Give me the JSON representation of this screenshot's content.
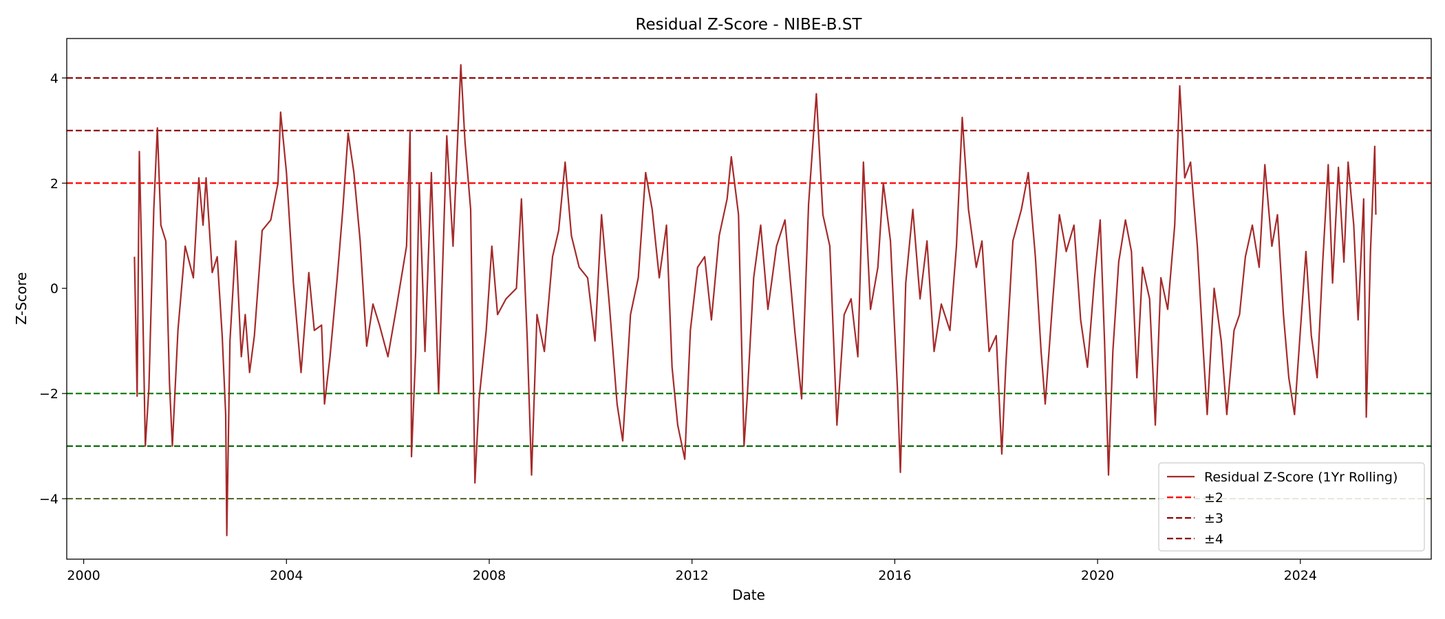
{
  "chart_data": {
    "type": "line",
    "title": "Residual Z-Score - NIBE-B.ST",
    "xlabel": "Date",
    "ylabel": "Z-Score",
    "xlim": [
      "1999-09-01",
      "2026-08-01"
    ],
    "ylim": [
      -5.15,
      4.75
    ],
    "x_ticks": [
      "2000",
      "2004",
      "2008",
      "2012",
      "2016",
      "2020",
      "2024"
    ],
    "y_ticks": [
      4,
      2,
      0,
      -2,
      -4
    ],
    "y_tick_labels": [
      "4",
      "2",
      "0",
      "−2",
      "−4"
    ],
    "grid": false,
    "legend": {
      "placement": "lower-right",
      "entries": [
        "Residual Z-Score (1Yr Rolling)",
        "±2",
        "±3",
        "±4"
      ]
    },
    "thresholds": [
      {
        "name": "±2",
        "upper": 2,
        "lower": -2,
        "upper_color": "#ff0000",
        "lower_color": "#008000"
      },
      {
        "name": "±3",
        "upper": 3,
        "lower": -3,
        "upper_color": "#8b0000",
        "lower_color": "#006400"
      },
      {
        "name": "±4",
        "upper": 4,
        "lower": -4,
        "upper_color": "#8b0000",
        "lower_color": "#556b2f"
      }
    ],
    "series": [
      {
        "name": "Residual Z-Score (1Yr Rolling)",
        "color": "#a52a2a",
        "points": [
          [
            "2001-01-01",
            0.6
          ],
          [
            "2001-01-20",
            -2.05
          ],
          [
            "2001-02-05",
            2.6
          ],
          [
            "2001-02-25",
            0.3
          ],
          [
            "2001-03-20",
            -3.0
          ],
          [
            "2001-04-15",
            -1.9
          ],
          [
            "2001-05-20",
            1.5
          ],
          [
            "2001-06-15",
            3.05
          ],
          [
            "2001-07-10",
            1.2
          ],
          [
            "2001-08-15",
            0.9
          ],
          [
            "2001-09-10",
            -1.8
          ],
          [
            "2001-10-01",
            -3.0
          ],
          [
            "2001-11-10",
            -0.8
          ],
          [
            "2002-01-01",
            0.8
          ],
          [
            "2002-03-01",
            0.2
          ],
          [
            "2002-04-10",
            2.1
          ],
          [
            "2002-05-10",
            1.2
          ],
          [
            "2002-06-01",
            2.1
          ],
          [
            "2002-07-15",
            0.3
          ],
          [
            "2002-08-20",
            0.6
          ],
          [
            "2002-09-25",
            -0.9
          ],
          [
            "2002-10-20",
            -2.4
          ],
          [
            "2002-10-28",
            -4.7
          ],
          [
            "2002-11-20",
            -1.0
          ],
          [
            "2003-01-01",
            0.9
          ],
          [
            "2003-02-10",
            -1.3
          ],
          [
            "2003-03-10",
            -0.5
          ],
          [
            "2003-04-10",
            -1.6
          ],
          [
            "2003-05-15",
            -0.9
          ],
          [
            "2003-07-10",
            1.1
          ],
          [
            "2003-09-10",
            1.3
          ],
          [
            "2003-11-01",
            2.0
          ],
          [
            "2003-11-20",
            3.35
          ],
          [
            "2004-01-01",
            2.2
          ],
          [
            "2004-02-20",
            0.1
          ],
          [
            "2004-04-15",
            -1.6
          ],
          [
            "2004-06-10",
            0.3
          ],
          [
            "2004-07-20",
            -0.8
          ],
          [
            "2004-09-10",
            -0.7
          ],
          [
            "2004-10-01",
            -2.2
          ],
          [
            "2004-11-10",
            -1.3
          ],
          [
            "2005-01-01",
            0.2
          ],
          [
            "2005-02-10",
            1.5
          ],
          [
            "2005-03-20",
            2.95
          ],
          [
            "2005-05-01",
            2.2
          ],
          [
            "2005-06-15",
            0.9
          ],
          [
            "2005-08-01",
            -1.1
          ],
          [
            "2005-09-15",
            -0.3
          ],
          [
            "2005-11-01",
            -0.7
          ],
          [
            "2006-01-01",
            -1.3
          ],
          [
            "2006-03-01",
            -0.4
          ],
          [
            "2006-05-15",
            0.8
          ],
          [
            "2006-06-10",
            3.0
          ],
          [
            "2006-06-20",
            -3.2
          ],
          [
            "2006-07-20",
            -1.2
          ],
          [
            "2006-08-15",
            2.0
          ],
          [
            "2006-09-25",
            -1.2
          ],
          [
            "2006-11-10",
            2.2
          ],
          [
            "2007-01-01",
            -2.0
          ],
          [
            "2007-03-01",
            2.9
          ],
          [
            "2007-04-15",
            0.8
          ],
          [
            "2007-06-10",
            4.25
          ],
          [
            "2007-07-10",
            2.8
          ],
          [
            "2007-08-20",
            1.5
          ],
          [
            "2007-09-20",
            -3.7
          ],
          [
            "2007-10-20",
            -2.1
          ],
          [
            "2007-12-10",
            -0.8
          ],
          [
            "2008-01-20",
            0.8
          ],
          [
            "2008-03-01",
            -0.5
          ],
          [
            "2008-05-01",
            -0.2
          ],
          [
            "2008-07-15",
            0.0
          ],
          [
            "2008-08-20",
            1.7
          ],
          [
            "2008-10-01",
            -1.0
          ],
          [
            "2008-11-01",
            -3.55
          ],
          [
            "2008-12-10",
            -0.5
          ],
          [
            "2009-02-01",
            -1.2
          ],
          [
            "2009-04-01",
            0.6
          ],
          [
            "2009-05-15",
            1.1
          ],
          [
            "2009-07-01",
            2.4
          ],
          [
            "2009-08-15",
            1.0
          ],
          [
            "2009-10-10",
            0.4
          ],
          [
            "2009-12-10",
            0.2
          ],
          [
            "2010-02-01",
            -1.0
          ],
          [
            "2010-03-20",
            1.4
          ],
          [
            "2010-05-15",
            -0.3
          ],
          [
            "2010-07-10",
            -2.2
          ],
          [
            "2010-08-20",
            -2.9
          ],
          [
            "2010-10-15",
            -0.5
          ],
          [
            "2010-12-10",
            0.2
          ],
          [
            "2011-02-01",
            2.2
          ],
          [
            "2011-03-20",
            1.5
          ],
          [
            "2011-05-10",
            0.2
          ],
          [
            "2011-07-01",
            1.2
          ],
          [
            "2011-08-10",
            -1.5
          ],
          [
            "2011-09-20",
            -2.6
          ],
          [
            "2011-11-10",
            -3.25
          ],
          [
            "2011-12-20",
            -0.8
          ],
          [
            "2012-02-10",
            0.4
          ],
          [
            "2012-04-01",
            0.6
          ],
          [
            "2012-05-20",
            -0.6
          ],
          [
            "2012-07-15",
            1.0
          ],
          [
            "2012-09-10",
            1.7
          ],
          [
            "2012-10-10",
            2.5
          ],
          [
            "2012-12-01",
            1.4
          ],
          [
            "2013-01-10",
            -3.0
          ],
          [
            "2013-02-01",
            -2.1
          ],
          [
            "2013-03-20",
            0.2
          ],
          [
            "2013-05-10",
            1.2
          ],
          [
            "2013-07-01",
            -0.4
          ],
          [
            "2013-09-01",
            0.8
          ],
          [
            "2013-11-01",
            1.3
          ],
          [
            "2014-01-10",
            -0.8
          ],
          [
            "2014-03-01",
            -2.1
          ],
          [
            "2014-04-20",
            1.6
          ],
          [
            "2014-06-15",
            3.7
          ],
          [
            "2014-08-01",
            1.4
          ],
          [
            "2014-09-20",
            0.8
          ],
          [
            "2014-11-10",
            -2.6
          ],
          [
            "2015-01-01",
            -0.5
          ],
          [
            "2015-02-20",
            -0.2
          ],
          [
            "2015-04-10",
            -1.3
          ],
          [
            "2015-05-20",
            2.4
          ],
          [
            "2015-07-10",
            -0.4
          ],
          [
            "2015-09-01",
            0.4
          ],
          [
            "2015-10-10",
            2.0
          ],
          [
            "2015-12-01",
            0.9
          ],
          [
            "2016-01-20",
            -1.9
          ],
          [
            "2016-02-10",
            -3.5
          ],
          [
            "2016-03-20",
            0.1
          ],
          [
            "2016-05-10",
            1.5
          ],
          [
            "2016-07-01",
            -0.2
          ],
          [
            "2016-08-20",
            0.9
          ],
          [
            "2016-10-10",
            -1.2
          ],
          [
            "2016-12-01",
            -0.3
          ],
          [
            "2017-02-01",
            -0.8
          ],
          [
            "2017-03-20",
            0.8
          ],
          [
            "2017-05-01",
            3.25
          ],
          [
            "2017-06-15",
            1.5
          ],
          [
            "2017-08-10",
            0.4
          ],
          [
            "2017-09-20",
            0.9
          ],
          [
            "2017-11-10",
            -1.2
          ],
          [
            "2018-01-01",
            -0.9
          ],
          [
            "2018-02-10",
            -3.15
          ],
          [
            "2018-03-10",
            -1.5
          ],
          [
            "2018-05-01",
            0.9
          ],
          [
            "2018-07-01",
            1.5
          ],
          [
            "2018-08-20",
            2.2
          ],
          [
            "2018-10-10",
            0.6
          ],
          [
            "2018-11-20",
            -1.2
          ],
          [
            "2018-12-20",
            -2.2
          ],
          [
            "2019-02-10",
            -0.3
          ],
          [
            "2019-04-01",
            1.4
          ],
          [
            "2019-05-20",
            0.7
          ],
          [
            "2019-07-15",
            1.2
          ],
          [
            "2019-09-01",
            -0.6
          ],
          [
            "2019-10-20",
            -1.5
          ],
          [
            "2019-12-10",
            0.2
          ],
          [
            "2020-01-20",
            1.3
          ],
          [
            "2020-02-20",
            -1.0
          ],
          [
            "2020-03-20",
            -3.55
          ],
          [
            "2020-04-20",
            -1.2
          ],
          [
            "2020-06-01",
            0.5
          ],
          [
            "2020-07-20",
            1.3
          ],
          [
            "2020-09-01",
            0.7
          ],
          [
            "2020-10-10",
            -1.7
          ],
          [
            "2020-11-20",
            0.4
          ],
          [
            "2021-01-10",
            -0.2
          ],
          [
            "2021-02-20",
            -2.6
          ],
          [
            "2021-04-01",
            0.2
          ],
          [
            "2021-05-20",
            -0.4
          ],
          [
            "2021-07-10",
            1.2
          ],
          [
            "2021-08-15",
            3.85
          ],
          [
            "2021-09-20",
            2.1
          ],
          [
            "2021-11-01",
            2.4
          ],
          [
            "2021-12-20",
            0.8
          ],
          [
            "2022-02-01",
            -1.2
          ],
          [
            "2022-03-01",
            -2.4
          ],
          [
            "2022-04-20",
            0.0
          ],
          [
            "2022-06-10",
            -1.0
          ],
          [
            "2022-07-20",
            -2.4
          ],
          [
            "2022-09-10",
            -0.8
          ],
          [
            "2022-10-20",
            -0.5
          ],
          [
            "2022-12-01",
            0.6
          ],
          [
            "2023-01-20",
            1.2
          ],
          [
            "2023-03-10",
            0.4
          ],
          [
            "2023-04-20",
            2.35
          ],
          [
            "2023-06-10",
            0.8
          ],
          [
            "2023-07-20",
            1.4
          ],
          [
            "2023-09-01",
            -0.5
          ],
          [
            "2023-10-10",
            -1.7
          ],
          [
            "2023-11-20",
            -2.4
          ],
          [
            "2024-01-01",
            -0.8
          ],
          [
            "2024-02-10",
            0.7
          ],
          [
            "2024-03-20",
            -0.9
          ],
          [
            "2024-05-01",
            -1.7
          ],
          [
            "2024-06-10",
            0.5
          ],
          [
            "2024-07-20",
            2.35
          ],
          [
            "2024-08-20",
            0.1
          ],
          [
            "2024-10-01",
            2.3
          ],
          [
            "2024-11-10",
            0.5
          ],
          [
            "2024-12-10",
            2.4
          ],
          [
            "2025-01-20",
            1.2
          ],
          [
            "2025-02-20",
            -0.6
          ],
          [
            "2025-04-01",
            1.7
          ],
          [
            "2025-04-20",
            -2.45
          ],
          [
            "2025-05-20",
            0.7
          ],
          [
            "2025-06-20",
            2.7
          ],
          [
            "2025-06-28",
            1.4
          ]
        ]
      }
    ]
  }
}
